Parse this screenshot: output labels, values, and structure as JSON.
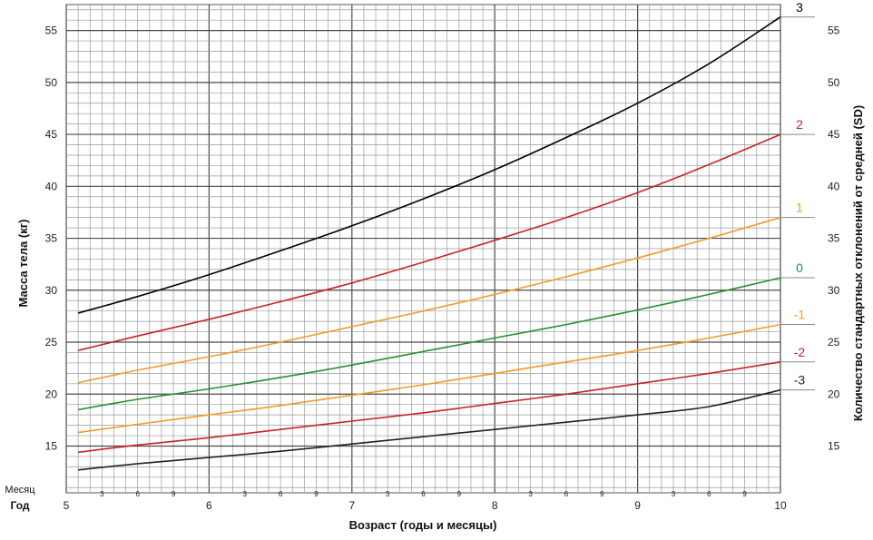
{
  "chart_data": {
    "type": "line",
    "title": "",
    "ylabel": "Масса тела (кг)",
    "ylabel_right": "Количество стандартных отклонений от средней (SD)",
    "xlabel": "Возраст (годы и месяцы)",
    "row_label_month": "Месяц",
    "row_label_year": "Год",
    "xlim": [
      5,
      10
    ],
    "ylim": [
      10.5,
      57.5
    ],
    "grid": true,
    "year_ticks": [
      "5",
      "6",
      "7",
      "8",
      "9",
      "10"
    ],
    "month_ticks": [
      "3",
      "6",
      "9"
    ],
    "y_ticks": [
      "15",
      "20",
      "25",
      "30",
      "35",
      "40",
      "45",
      "50",
      "55"
    ],
    "x_years": [
      5.0833,
      5.5,
      6.0,
      6.5,
      7.0,
      7.5,
      8.0,
      8.5,
      9.0,
      9.5,
      10.0
    ],
    "series": [
      {
        "name": "3",
        "color": "#000000",
        "values": [
          27.8,
          29.4,
          31.5,
          33.8,
          36.2,
          38.8,
          41.6,
          44.7,
          48.0,
          51.8,
          56.3
        ]
      },
      {
        "name": "2",
        "color": "#cc2222",
        "values": [
          24.2,
          25.6,
          27.2,
          28.9,
          30.7,
          32.7,
          34.8,
          37.0,
          39.4,
          42.1,
          45.0
        ]
      },
      {
        "name": "1",
        "color": "#f59a23",
        "values": [
          21.1,
          22.3,
          23.6,
          25.0,
          26.5,
          28.0,
          29.6,
          31.3,
          33.1,
          35.0,
          37.0
        ]
      },
      {
        "name": "0",
        "color": "#22922e",
        "values": [
          18.5,
          19.5,
          20.5,
          21.6,
          22.8,
          24.1,
          25.4,
          26.7,
          28.1,
          29.6,
          31.2
        ]
      },
      {
        "name": "-1",
        "color": "#f59a23",
        "values": [
          16.3,
          17.1,
          18.0,
          18.9,
          19.9,
          20.9,
          22.0,
          23.1,
          24.2,
          25.4,
          26.7
        ]
      },
      {
        "name": "-2",
        "color": "#cc2222",
        "values": [
          14.4,
          15.1,
          15.8,
          16.6,
          17.4,
          18.2,
          19.1,
          20.0,
          21.0,
          22.0,
          23.1
        ]
      },
      {
        "name": "-3",
        "color": "#222222",
        "values": [
          12.7,
          13.3,
          13.9,
          14.5,
          15.2,
          15.9,
          16.6,
          17.3,
          18.0,
          18.8,
          20.4
        ]
      }
    ]
  }
}
